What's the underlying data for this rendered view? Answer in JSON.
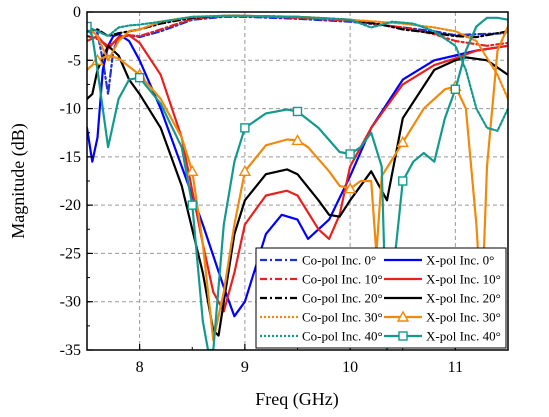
{
  "chart_data": {
    "type": "line",
    "xlabel": "Freq (GHz)",
    "ylabel": "Magnitude (dB)",
    "xlim": [
      7.5,
      11.5
    ],
    "ylim": [
      -35,
      0
    ],
    "xticks": [
      8,
      9,
      10,
      11
    ],
    "yticks": [
      0,
      -5,
      -10,
      -15,
      -20,
      -25,
      -30,
      -35
    ],
    "grid": true,
    "legend_position": "bottom-right",
    "series": [
      {
        "name": "Co-pol Inc. 0°",
        "color": "#1f2fd6",
        "dash": "dashdot",
        "marker": "none",
        "x": [
          7.5,
          7.6,
          7.65,
          7.7,
          7.75,
          7.8,
          7.9,
          8.0,
          8.2,
          8.5,
          8.8,
          9.0,
          9.5,
          10.0,
          10.5,
          10.8,
          11.0,
          11.2,
          11.5
        ],
        "y": [
          -2.0,
          -2.2,
          -5.0,
          -8.5,
          -4.0,
          -2.6,
          -2.4,
          -2.6,
          -2.0,
          -0.8,
          -0.5,
          -0.5,
          -0.7,
          -1.0,
          -1.6,
          -2.0,
          -2.4,
          -2.3,
          -2.2
        ]
      },
      {
        "name": "X-pol Inc. 0°",
        "color": "#0000ff",
        "dash": "solid",
        "marker": "none",
        "x": [
          7.5,
          7.55,
          7.6,
          7.65,
          7.7,
          7.75,
          7.8,
          7.9,
          8.0,
          8.2,
          8.4,
          8.6,
          8.8,
          8.9,
          9.0,
          9.2,
          9.35,
          9.5,
          9.6,
          9.8,
          10.0,
          10.2,
          10.5,
          10.8,
          11.0,
          11.2,
          11.5
        ],
        "y": [
          -12.0,
          -15.5,
          -13.0,
          -6.0,
          -3.5,
          -2.5,
          -2.3,
          -3.0,
          -5.0,
          -10.0,
          -16.0,
          -22.0,
          -28.5,
          -31.5,
          -30.0,
          -23.0,
          -21.0,
          -21.5,
          -23.5,
          -21.5,
          -17.0,
          -12.0,
          -7.0,
          -5.0,
          -4.5,
          -4.0,
          -3.5
        ]
      },
      {
        "name": "Co-pol Inc. 10°",
        "color": "#e8201e",
        "dash": "dashdot",
        "marker": "none",
        "x": [
          7.5,
          7.6,
          7.7,
          7.8,
          7.9,
          8.0,
          8.2,
          8.5,
          8.8,
          9.0,
          9.5,
          10.0,
          10.5,
          10.8,
          11.0,
          11.3,
          11.5
        ],
        "y": [
          -2.5,
          -2.8,
          -3.5,
          -2.8,
          -2.4,
          -2.5,
          -1.8,
          -0.7,
          -0.4,
          -0.4,
          -0.6,
          -0.9,
          -1.6,
          -2.3,
          -3.0,
          -3.5,
          -3.2
        ]
      },
      {
        "name": "X-pol Inc. 10°",
        "color": "#e8201e",
        "dash": "solid",
        "marker": "none",
        "x": [
          7.5,
          7.6,
          7.7,
          7.8,
          7.9,
          8.0,
          8.2,
          8.4,
          8.6,
          8.7,
          8.8,
          8.9,
          9.0,
          9.2,
          9.4,
          9.5,
          9.7,
          9.8,
          9.9,
          10.0,
          10.2,
          10.5,
          10.8,
          11.0,
          11.2,
          11.5
        ],
        "y": [
          -3.0,
          -2.5,
          -3.8,
          -2.6,
          -2.4,
          -3.2,
          -6.5,
          -13.0,
          -24.0,
          -29.0,
          -31.0,
          -27.0,
          -22.0,
          -19.0,
          -18.5,
          -19.0,
          -22.5,
          -23.5,
          -21.0,
          -16.0,
          -12.0,
          -7.5,
          -5.5,
          -4.8,
          -4.0,
          -3.5
        ]
      },
      {
        "name": "Co-pol Inc. 20°",
        "color": "#000000",
        "dash": "dashdot",
        "marker": "none",
        "x": [
          7.5,
          7.6,
          7.7,
          7.8,
          7.9,
          8.0,
          8.2,
          8.5,
          8.8,
          9.0,
          9.5,
          10.0,
          10.3,
          10.5,
          10.8,
          11.0,
          11.2,
          11.5
        ],
        "y": [
          -2.0,
          -1.8,
          -2.5,
          -2.2,
          -2.0,
          -1.8,
          -1.2,
          -0.6,
          -0.4,
          -0.4,
          -0.5,
          -0.8,
          -1.3,
          -1.8,
          -2.2,
          -2.5,
          -2.6,
          -2.0
        ]
      },
      {
        "name": "X-pol Inc. 20°",
        "color": "#000000",
        "dash": "solid",
        "marker": "none",
        "x": [
          7.5,
          7.55,
          7.6,
          7.7,
          7.8,
          7.9,
          8.0,
          8.2,
          8.4,
          8.6,
          8.7,
          8.75,
          8.8,
          8.9,
          9.0,
          9.2,
          9.4,
          9.5,
          9.7,
          9.8,
          9.9,
          10.0,
          10.2,
          10.35,
          10.5,
          10.8,
          11.0,
          11.1,
          11.3,
          11.5
        ],
        "y": [
          -9.0,
          -8.5,
          -6.0,
          -3.5,
          -4.5,
          -7.0,
          -8.5,
          -12.0,
          -18.0,
          -27.0,
          -33.0,
          -33.5,
          -30.0,
          -23.0,
          -19.5,
          -16.8,
          -16.3,
          -16.8,
          -19.5,
          -21.0,
          -21.2,
          -19.5,
          -16.5,
          -19.5,
          -11.0,
          -6.0,
          -5.0,
          -4.7,
          -5.0,
          -6.5
        ]
      },
      {
        "name": "Co-pol Inc. 30°",
        "color": "#f08a0c",
        "dash": "dot",
        "marker": "none",
        "x": [
          7.5,
          7.6,
          7.7,
          7.8,
          7.9,
          8.0,
          8.2,
          8.5,
          8.8,
          9.0,
          9.5,
          10.0,
          10.5,
          10.8,
          11.0,
          11.2,
          11.4,
          11.5
        ],
        "y": [
          -1.5,
          -2.5,
          -5.0,
          -3.0,
          -2.0,
          -1.8,
          -1.0,
          -0.5,
          -0.4,
          -0.4,
          -0.5,
          -0.8,
          -1.2,
          -1.6,
          -2.0,
          -3.0,
          -6.5,
          -9.0
        ]
      },
      {
        "name": "X-pol Inc. 30°",
        "color": "#f08a0c",
        "dash": "solid",
        "marker": "triangle",
        "marker_x": [
          7.6,
          8.0,
          8.5,
          9.0,
          9.5,
          10.0,
          10.5,
          11.0
        ],
        "x": [
          7.5,
          7.55,
          7.6,
          7.7,
          7.8,
          8.0,
          8.2,
          8.4,
          8.5,
          8.6,
          8.7,
          8.8,
          8.9,
          9.0,
          9.2,
          9.4,
          9.5,
          9.6,
          9.8,
          9.9,
          10.0,
          10.1,
          10.2,
          10.25,
          10.3,
          10.5,
          10.7,
          10.9,
          11.0,
          11.1,
          11.2,
          11.25,
          11.3,
          11.4,
          11.5
        ],
        "y": [
          -6.0,
          -5.5,
          -5.0,
          -4.5,
          -4.8,
          -6.5,
          -9.0,
          -13.0,
          -16.5,
          -24.0,
          -34.0,
          -29.0,
          -22.0,
          -16.5,
          -13.8,
          -13.2,
          -13.3,
          -14.0,
          -16.5,
          -18.0,
          -18.3,
          -17.5,
          -17.5,
          -25.0,
          -17.0,
          -13.5,
          -10.0,
          -8.0,
          -7.7,
          -10.0,
          -22.0,
          -31.0,
          -16.0,
          -4.0,
          -1.5
        ]
      },
      {
        "name": "Co-pol Inc. 40°",
        "color": "#14998f",
        "dash": "dot",
        "marker": "none",
        "x": [
          7.5,
          7.6,
          7.7,
          7.8,
          7.9,
          8.0,
          8.2,
          8.5,
          8.8,
          9.0,
          9.5,
          10.0,
          10.2,
          10.4,
          10.6,
          10.8,
          11.0,
          11.1,
          11.2,
          11.3,
          11.4,
          11.5
        ],
        "y": [
          -1.5,
          -2.0,
          -2.5,
          -1.6,
          -1.4,
          -1.3,
          -1.0,
          -0.5,
          -0.4,
          -0.4,
          -0.5,
          -0.8,
          -1.6,
          -1.0,
          -1.2,
          -2.0,
          -3.5,
          -6.0,
          -10.0,
          -12.0,
          -12.3,
          -10.0
        ]
      },
      {
        "name": "X-pol Inc. 40°",
        "color": "#14998f",
        "dash": "solid",
        "marker": "square",
        "marker_x": [
          7.5,
          8.0,
          8.5,
          9.0,
          9.5,
          10.0,
          10.5,
          11.0
        ],
        "x": [
          7.5,
          7.55,
          7.6,
          7.65,
          7.7,
          7.8,
          7.9,
          8.0,
          8.2,
          8.4,
          8.5,
          8.6,
          8.65,
          8.7,
          8.8,
          8.9,
          9.0,
          9.2,
          9.4,
          9.5,
          9.7,
          9.9,
          10.0,
          10.1,
          10.2,
          10.3,
          10.35,
          10.4,
          10.5,
          10.6,
          10.7,
          10.8,
          10.9,
          11.0,
          11.1,
          11.2,
          11.3,
          11.4,
          11.5
        ],
        "y": [
          -1.5,
          -2.5,
          -6.0,
          -10.0,
          -14.0,
          -9.0,
          -7.0,
          -6.8,
          -9.5,
          -14.0,
          -20.0,
          -32.0,
          -35.0,
          -35.0,
          -22.0,
          -15.5,
          -12.0,
          -10.5,
          -10.1,
          -10.3,
          -12.0,
          -14.5,
          -14.7,
          -14.0,
          -12.5,
          -16.0,
          -35.0,
          -28.0,
          -17.5,
          -15.5,
          -14.6,
          -15.5,
          -11.0,
          -8.0,
          -4.0,
          -1.5,
          -0.6,
          -0.6,
          -0.8
        ]
      }
    ]
  }
}
